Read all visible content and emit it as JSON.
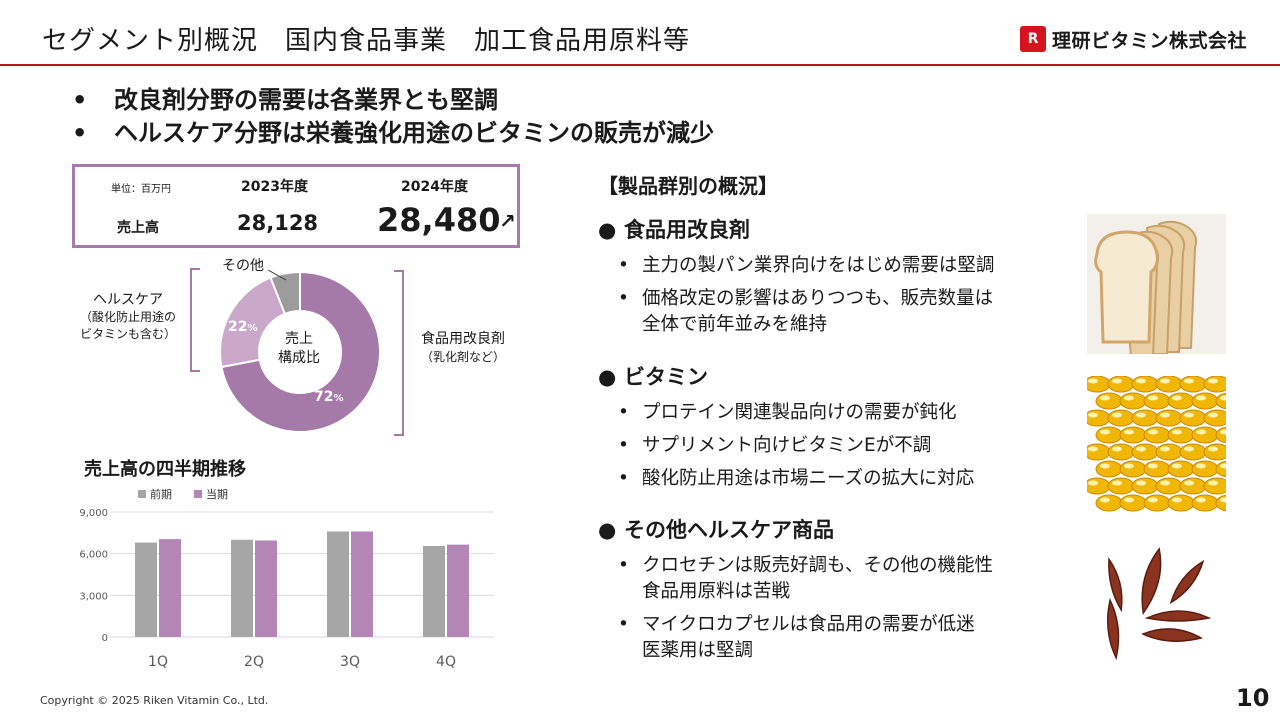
{
  "header": {
    "title": "セグメント別概況　国内食品事業　加工食品用原料等",
    "logo_text": "理研ビタミン株式会社",
    "logo_mark": "R"
  },
  "headlines": [
    "改良剤分野の需要は各業界とも堅調",
    "ヘルスケア分野は栄養強化用途のビタミンの販売が減少"
  ],
  "bullet_char": "•",
  "sales_table": {
    "unit": "単位：百万円",
    "col_2023": "2023年度",
    "col_2024": "2024年度",
    "row_label": "売上高",
    "value_2023": "28,128",
    "value_2024": "28,480",
    "trend_arrow": "↗"
  },
  "composition": {
    "center_line1": "売上",
    "center_line2": "構成比",
    "pct_food": "72",
    "pct_health": "22",
    "pct_unit": "%",
    "label_other": "その他",
    "label_health_1": "ヘルスケア",
    "label_health_2": "（酸化防止用途の",
    "label_health_3": "ビタミンも含む）",
    "label_food_1": "食品用改良剤",
    "label_food_2": "（乳化剤など）",
    "shares": [
      72,
      22,
      6
    ],
    "colors": [
      "#a57aa9",
      "#c9a8cc",
      "#9c9c9c"
    ]
  },
  "quarterly_title": "売上高の四半期推移",
  "chart_data": {
    "type": "bar",
    "categories": [
      "1Q",
      "2Q",
      "3Q",
      "4Q"
    ],
    "series": [
      {
        "name": "前期",
        "values": [
          6800,
          7000,
          7600,
          6550
        ],
        "color": "#a6a6a6"
      },
      {
        "name": "当期",
        "values": [
          7050,
          6950,
          7600,
          6650
        ],
        "color": "#b486b8"
      }
    ],
    "yticks": [
      "0",
      "3,000",
      "6,000",
      "9,000"
    ],
    "ylim": [
      0,
      9000
    ],
    "legend": "top-left",
    "grid": true
  },
  "panel": {
    "title": "【製品群別の概況】",
    "category_bullet": "●",
    "item_bullet": "•",
    "categories": [
      {
        "name": "食品用改良剤",
        "items": [
          {
            "lines": [
              "主力の製パン業界向けをはじめ需要は堅調"
            ]
          },
          {
            "lines": [
              "価格改定の影響はありつつも、販売数量は",
              "全体で前年並みを維持"
            ]
          }
        ]
      },
      {
        "name": "ビタミン",
        "items": [
          {
            "lines": [
              "プロテイン関連製品向けの需要が鈍化"
            ]
          },
          {
            "lines": [
              "サプリメント向けビタミンEが不調"
            ]
          },
          {
            "lines": [
              "酸化防止用途は市場ニーズの拡大に対応"
            ]
          }
        ]
      },
      {
        "name": "その他ヘルスケア商品",
        "items": [
          {
            "lines": [
              "クロセチンは販売好調も、その他の機能性",
              "食品用原料は苦戦"
            ]
          },
          {
            "lines": [
              "マイクロカプセルは食品用の需要が低迷",
              "医薬用は堅調"
            ]
          }
        ]
      }
    ]
  },
  "footer": {
    "copyright": "Copyright © 2025 Riken Vitamin Co., Ltd.",
    "page_number": "10"
  }
}
